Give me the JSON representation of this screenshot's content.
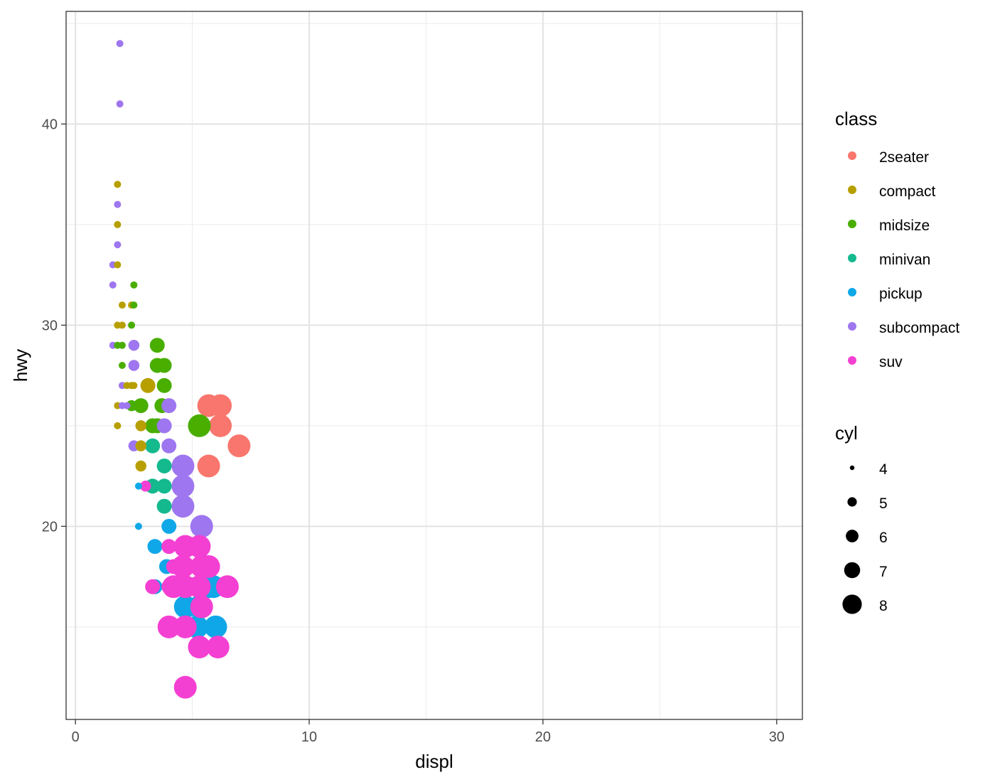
{
  "chart_data": {
    "type": "scatter",
    "xlabel": "displ",
    "ylabel": "hwy",
    "xlim": [
      -0.4,
      31.1
    ],
    "ylim": [
      10.4,
      45.6
    ],
    "x_ticks": [
      0,
      10,
      20,
      30
    ],
    "y_ticks": [
      20,
      30,
      40
    ],
    "x_tick_labels": [
      "0",
      "10",
      "20",
      "30"
    ],
    "y_tick_labels": [
      "20",
      "30",
      "40"
    ],
    "grid": true,
    "legend_placement": "right",
    "color_legend": {
      "title": "class",
      "entries": [
        {
          "label": "2seater",
          "color": "#F8766D"
        },
        {
          "label": "compact",
          "color": "#B79F00"
        },
        {
          "label": "midsize",
          "color": "#49AE00"
        },
        {
          "label": "minivan",
          "color": "#14B98E"
        },
        {
          "label": "pickup",
          "color": "#10A7E8"
        },
        {
          "label": "subcompact",
          "color": "#9E76F0"
        },
        {
          "label": "suv",
          "color": "#F43FD3"
        }
      ]
    },
    "size_legend": {
      "title": "cyl",
      "entries": [
        {
          "label": "4",
          "value": 4
        },
        {
          "label": "5",
          "value": 5
        },
        {
          "label": "6",
          "value": 6
        },
        {
          "label": "7",
          "value": 7
        },
        {
          "label": "8",
          "value": 8
        }
      ]
    },
    "points": [
      {
        "x": 1.9,
        "y": 44,
        "class": "subcompact",
        "cyl": 4
      },
      {
        "x": 1.9,
        "y": 41,
        "class": "subcompact",
        "cyl": 4
      },
      {
        "x": 1.8,
        "y": 37,
        "class": "compact",
        "cyl": 4
      },
      {
        "x": 1.8,
        "y": 36,
        "class": "subcompact",
        "cyl": 4
      },
      {
        "x": 1.8,
        "y": 35,
        "class": "compact",
        "cyl": 4
      },
      {
        "x": 1.8,
        "y": 34,
        "class": "subcompact",
        "cyl": 4
      },
      {
        "x": 1.6,
        "y": 33,
        "class": "subcompact",
        "cyl": 4
      },
      {
        "x": 1.8,
        "y": 33,
        "class": "compact",
        "cyl": 4
      },
      {
        "x": 1.6,
        "y": 32,
        "class": "subcompact",
        "cyl": 4
      },
      {
        "x": 2.5,
        "y": 32,
        "class": "midsize",
        "cyl": 4
      },
      {
        "x": 2.0,
        "y": 31,
        "class": "compact",
        "cyl": 4
      },
      {
        "x": 2.4,
        "y": 31,
        "class": "compact",
        "cyl": 4
      },
      {
        "x": 2.5,
        "y": 31,
        "class": "midsize",
        "cyl": 4
      },
      {
        "x": 1.8,
        "y": 30,
        "class": "compact",
        "cyl": 4
      },
      {
        "x": 2.0,
        "y": 30,
        "class": "compact",
        "cyl": 4
      },
      {
        "x": 2.4,
        "y": 30,
        "class": "midsize",
        "cyl": 4
      },
      {
        "x": 1.6,
        "y": 29,
        "class": "subcompact",
        "cyl": 4
      },
      {
        "x": 1.8,
        "y": 29,
        "class": "midsize",
        "cyl": 4
      },
      {
        "x": 2.0,
        "y": 29,
        "class": "midsize",
        "cyl": 4
      },
      {
        "x": 2.0,
        "y": 28,
        "class": "midsize",
        "cyl": 4
      },
      {
        "x": 2.0,
        "y": 27,
        "class": "subcompact",
        "cyl": 4
      },
      {
        "x": 2.2,
        "y": 27,
        "class": "compact",
        "cyl": 4
      },
      {
        "x": 2.4,
        "y": 27,
        "class": "compact",
        "cyl": 4
      },
      {
        "x": 2.5,
        "y": 27,
        "class": "compact",
        "cyl": 4
      },
      {
        "x": 1.8,
        "y": 26,
        "class": "compact",
        "cyl": 4
      },
      {
        "x": 2.0,
        "y": 26,
        "class": "subcompact",
        "cyl": 4
      },
      {
        "x": 2.2,
        "y": 26,
        "class": "subcompact",
        "cyl": 4
      },
      {
        "x": 1.8,
        "y": 25,
        "class": "compact",
        "cyl": 4
      },
      {
        "x": 2.7,
        "y": 22,
        "class": "pickup",
        "cyl": 4
      },
      {
        "x": 2.7,
        "y": 20,
        "class": "pickup",
        "cyl": 4
      },
      {
        "x": 2.5,
        "y": 29,
        "class": "subcompact",
        "cyl": 5
      },
      {
        "x": 2.5,
        "y": 28,
        "class": "subcompact",
        "cyl": 5
      },
      {
        "x": 2.5,
        "y": 24,
        "class": "subcompact",
        "cyl": 5
      },
      {
        "x": 3.0,
        "y": 22,
        "class": "suv",
        "cyl": 5
      },
      {
        "x": 2.4,
        "y": 26,
        "class": "midsize",
        "cyl": 5
      },
      {
        "x": 2.8,
        "y": 25,
        "class": "compact",
        "cyl": 5
      },
      {
        "x": 2.8,
        "y": 24,
        "class": "compact",
        "cyl": 5
      },
      {
        "x": 2.8,
        "y": 23,
        "class": "compact",
        "cyl": 5
      },
      {
        "x": 3.1,
        "y": 27,
        "class": "compact",
        "cyl": 6
      },
      {
        "x": 3.5,
        "y": 29,
        "class": "midsize",
        "cyl": 6
      },
      {
        "x": 3.5,
        "y": 28,
        "class": "midsize",
        "cyl": 6
      },
      {
        "x": 3.8,
        "y": 28,
        "class": "midsize",
        "cyl": 6
      },
      {
        "x": 3.8,
        "y": 27,
        "class": "midsize",
        "cyl": 6
      },
      {
        "x": 2.8,
        "y": 26,
        "class": "midsize",
        "cyl": 6
      },
      {
        "x": 3.7,
        "y": 26,
        "class": "midsize",
        "cyl": 6
      },
      {
        "x": 4.0,
        "y": 26,
        "class": "subcompact",
        "cyl": 6
      },
      {
        "x": 3.3,
        "y": 25,
        "class": "midsize",
        "cyl": 6
      },
      {
        "x": 3.5,
        "y": 25,
        "class": "midsize",
        "cyl": 6
      },
      {
        "x": 3.8,
        "y": 25,
        "class": "subcompact",
        "cyl": 6
      },
      {
        "x": 3.3,
        "y": 24,
        "class": "minivan",
        "cyl": 6
      },
      {
        "x": 4.0,
        "y": 24,
        "class": "subcompact",
        "cyl": 6
      },
      {
        "x": 3.8,
        "y": 23,
        "class": "minivan",
        "cyl": 6
      },
      {
        "x": 3.3,
        "y": 22,
        "class": "minivan",
        "cyl": 6
      },
      {
        "x": 3.8,
        "y": 22,
        "class": "minivan",
        "cyl": 6
      },
      {
        "x": 3.8,
        "y": 21,
        "class": "minivan",
        "cyl": 6
      },
      {
        "x": 4.0,
        "y": 20,
        "class": "pickup",
        "cyl": 6
      },
      {
        "x": 3.4,
        "y": 19,
        "class": "pickup",
        "cyl": 6
      },
      {
        "x": 3.9,
        "y": 18,
        "class": "pickup",
        "cyl": 6
      },
      {
        "x": 3.4,
        "y": 17,
        "class": "pickup",
        "cyl": 6
      },
      {
        "x": 3.3,
        "y": 17,
        "class": "suv",
        "cyl": 6
      },
      {
        "x": 4.0,
        "y": 17,
        "class": "suv",
        "cyl": 6
      },
      {
        "x": 4.0,
        "y": 19,
        "class": "suv",
        "cyl": 6
      },
      {
        "x": 4.2,
        "y": 18,
        "class": "suv",
        "cyl": 6
      },
      {
        "x": 4.0,
        "y": 15,
        "class": "suv",
        "cyl": 6
      },
      {
        "x": 5.7,
        "y": 26,
        "class": "2seater",
        "cyl": 8
      },
      {
        "x": 6.2,
        "y": 26,
        "class": "2seater",
        "cyl": 8
      },
      {
        "x": 6.2,
        "y": 25,
        "class": "2seater",
        "cyl": 8
      },
      {
        "x": 7.0,
        "y": 24,
        "class": "2seater",
        "cyl": 8
      },
      {
        "x": 5.7,
        "y": 23,
        "class": "2seater",
        "cyl": 8
      },
      {
        "x": 5.3,
        "y": 25,
        "class": "midsize",
        "cyl": 8
      },
      {
        "x": 4.6,
        "y": 23,
        "class": "subcompact",
        "cyl": 8
      },
      {
        "x": 4.6,
        "y": 22,
        "class": "subcompact",
        "cyl": 8
      },
      {
        "x": 4.6,
        "y": 21,
        "class": "subcompact",
        "cyl": 8
      },
      {
        "x": 5.4,
        "y": 20,
        "class": "subcompact",
        "cyl": 8
      },
      {
        "x": 4.7,
        "y": 16,
        "class": "pickup",
        "cyl": 8
      },
      {
        "x": 5.3,
        "y": 16,
        "class": "pickup",
        "cyl": 8
      },
      {
        "x": 5.7,
        "y": 17,
        "class": "pickup",
        "cyl": 8
      },
      {
        "x": 5.9,
        "y": 17,
        "class": "pickup",
        "cyl": 8
      },
      {
        "x": 5.2,
        "y": 15,
        "class": "pickup",
        "cyl": 8
      },
      {
        "x": 6.0,
        "y": 15,
        "class": "pickup",
        "cyl": 8
      },
      {
        "x": 4.7,
        "y": 19,
        "class": "suv",
        "cyl": 8
      },
      {
        "x": 5.3,
        "y": 19,
        "class": "suv",
        "cyl": 8
      },
      {
        "x": 4.6,
        "y": 18,
        "class": "suv",
        "cyl": 8
      },
      {
        "x": 5.4,
        "y": 18,
        "class": "suv",
        "cyl": 8
      },
      {
        "x": 5.7,
        "y": 18,
        "class": "suv",
        "cyl": 8
      },
      {
        "x": 4.2,
        "y": 17,
        "class": "suv",
        "cyl": 8
      },
      {
        "x": 4.7,
        "y": 17,
        "class": "suv",
        "cyl": 8
      },
      {
        "x": 5.3,
        "y": 17,
        "class": "suv",
        "cyl": 8
      },
      {
        "x": 6.5,
        "y": 17,
        "class": "suv",
        "cyl": 8
      },
      {
        "x": 5.4,
        "y": 16,
        "class": "suv",
        "cyl": 8
      },
      {
        "x": 4.0,
        "y": 15,
        "class": "suv",
        "cyl": 8
      },
      {
        "x": 4.7,
        "y": 15,
        "class": "suv",
        "cyl": 8
      },
      {
        "x": 5.3,
        "y": 14,
        "class": "suv",
        "cyl": 8
      },
      {
        "x": 6.1,
        "y": 14,
        "class": "suv",
        "cyl": 8
      },
      {
        "x": 4.7,
        "y": 12,
        "class": "suv",
        "cyl": 8
      }
    ]
  }
}
